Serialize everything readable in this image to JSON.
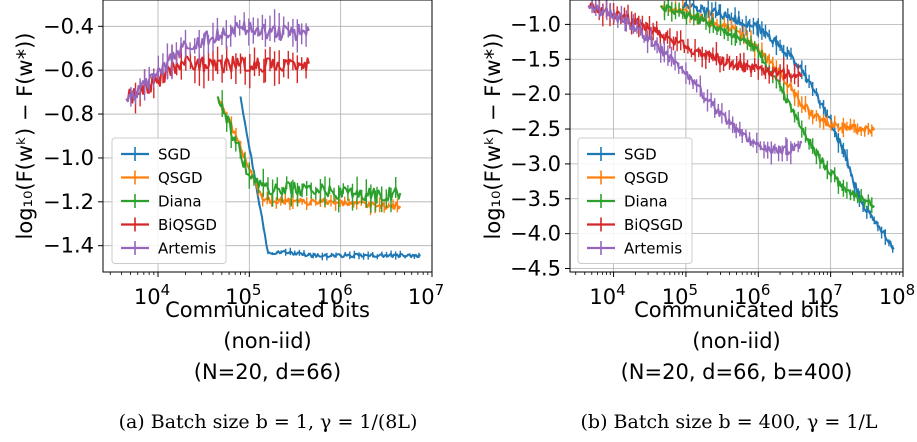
{
  "chart_data": [
    {
      "type": "line",
      "ylabel": "log₁₀(F(wᵏ) − F(w*))",
      "xlabel_lines": [
        "Communicated bits",
        "(non-iid)",
        "(N=20, d=66)"
      ],
      "caption": "(a) Batch size b = 1, γ = 1/(8L)",
      "x_scale": "log",
      "xlim": [
        2500,
        10000000
      ],
      "ylim": [
        -1.52,
        -0.28
      ],
      "x_ticks": [
        {
          "value": 10000,
          "base": "10",
          "exp": "4"
        },
        {
          "value": 100000,
          "base": "10",
          "exp": "5"
        },
        {
          "value": 1000000,
          "base": "10",
          "exp": "6"
        },
        {
          "value": 10000000,
          "base": "10",
          "exp": "7"
        }
      ],
      "y_ticks": [
        {
          "value": -0.4,
          "label": "−0.4"
        },
        {
          "value": -0.6,
          "label": "−0.6"
        },
        {
          "value": -0.8,
          "label": "−0.8"
        },
        {
          "value": -1.0,
          "label": "−1.0"
        },
        {
          "value": -1.2,
          "label": "−1.2"
        },
        {
          "value": -1.4,
          "label": "−1.4"
        }
      ],
      "grid": true,
      "legend_position": "lower-left",
      "series": [
        {
          "name": "SGD",
          "color": "#1f77b4",
          "noise": 0.008,
          "points": [
            [
              80000,
              -0.72
            ],
            [
              160000,
              -1.43
            ],
            [
              250000,
              -1.43
            ],
            [
              500000,
              -1.445
            ],
            [
              1000000,
              -1.445
            ],
            [
              2000000,
              -1.445
            ],
            [
              4000000,
              -1.445
            ],
            [
              7500000,
              -1.445
            ]
          ]
        },
        {
          "name": "QSGD",
          "color": "#ff7f0e",
          "noise": 0.015,
          "points": [
            [
              45000,
              -0.72
            ],
            [
              90000,
              -1.0
            ],
            [
              140000,
              -1.19
            ],
            [
              300000,
              -1.2
            ],
            [
              700000,
              -1.2
            ],
            [
              1500000,
              -1.21
            ],
            [
              3000000,
              -1.22
            ],
            [
              4500000,
              -1.22
            ]
          ]
        },
        {
          "name": "Diana",
          "color": "#2ca02c",
          "noise": 0.03,
          "points": [
            [
              45000,
              -0.72
            ],
            [
              100000,
              -1.08
            ],
            [
              160000,
              -1.14
            ],
            [
              300000,
              -1.14
            ],
            [
              600000,
              -1.15
            ],
            [
              1200000,
              -1.16
            ],
            [
              2500000,
              -1.17
            ],
            [
              4500000,
              -1.16
            ]
          ]
        },
        {
          "name": "BiQSGD",
          "color": "#d62728",
          "noise": 0.035,
          "points": [
            [
              4500,
              -0.73
            ],
            [
              9000,
              -0.66
            ],
            [
              18000,
              -0.56
            ],
            [
              40000,
              -0.58
            ],
            [
              80000,
              -0.57
            ],
            [
              150000,
              -0.58
            ],
            [
              300000,
              -0.56
            ],
            [
              450000,
              -0.57
            ]
          ]
        },
        {
          "name": "Artemis",
          "color": "#9467bd",
          "noise": 0.035,
          "points": [
            [
              4500,
              -0.73
            ],
            [
              9000,
              -0.64
            ],
            [
              20000,
              -0.48
            ],
            [
              40000,
              -0.45
            ],
            [
              70000,
              -0.4
            ],
            [
              150000,
              -0.43
            ],
            [
              300000,
              -0.43
            ],
            [
              450000,
              -0.42
            ]
          ]
        }
      ]
    },
    {
      "type": "line",
      "ylabel": "log₁₀(F(wᵏ) − F(w*))",
      "xlabel_lines": [
        "Communicated bits",
        "(non-iid)",
        "(N=20, d=66, b=400)"
      ],
      "caption": "(b) Batch size b = 400, γ = 1/L",
      "x_scale": "log",
      "xlim": [
        2500,
        100000000
      ],
      "ylim": [
        -4.55,
        -0.65
      ],
      "x_ticks": [
        {
          "value": 10000,
          "base": "10",
          "exp": "4"
        },
        {
          "value": 100000,
          "base": "10",
          "exp": "5"
        },
        {
          "value": 1000000,
          "base": "10",
          "exp": "6"
        },
        {
          "value": 10000000,
          "base": "10",
          "exp": "7"
        },
        {
          "value": 100000000,
          "base": "10",
          "exp": "8"
        }
      ],
      "y_ticks": [
        {
          "value": -1.0,
          "label": "−1.0"
        },
        {
          "value": -1.5,
          "label": "−1.5"
        },
        {
          "value": -2.0,
          "label": "−2.0"
        },
        {
          "value": -2.5,
          "label": "−2.5"
        },
        {
          "value": -3.0,
          "label": "−3.0"
        },
        {
          "value": -3.5,
          "label": "−3.5"
        },
        {
          "value": -4.0,
          "label": "−4.0"
        },
        {
          "value": -4.5,
          "label": "−4.5"
        }
      ],
      "grid": true,
      "legend_position": "lower-left",
      "series": [
        {
          "name": "SGD",
          "color": "#1f77b4",
          "noise": 0.06,
          "points": [
            [
              90000,
              -0.73
            ],
            [
              300000,
              -0.85
            ],
            [
              1000000,
              -1.05
            ],
            [
              2000000,
              -1.3
            ],
            [
              4000000,
              -1.65
            ],
            [
              8000000,
              -2.2
            ],
            [
              15000000,
              -2.8
            ],
            [
              25000000,
              -3.5
            ],
            [
              45000000,
              -3.9
            ],
            [
              75000000,
              -4.2
            ]
          ]
        },
        {
          "name": "QSGD",
          "color": "#ff7f0e",
          "noise": 0.06,
          "points": [
            [
              45000,
              -0.73
            ],
            [
              150000,
              -0.9
            ],
            [
              500000,
              -1.1
            ],
            [
              1000000,
              -1.35
            ],
            [
              2000000,
              -1.7
            ],
            [
              4000000,
              -2.15
            ],
            [
              8000000,
              -2.4
            ],
            [
              15000000,
              -2.48
            ],
            [
              40000000,
              -2.52
            ]
          ]
        },
        {
          "name": "Diana",
          "color": "#2ca02c",
          "noise": 0.06,
          "points": [
            [
              45000,
              -0.73
            ],
            [
              150000,
              -0.92
            ],
            [
              500000,
              -1.15
            ],
            [
              1000000,
              -1.4
            ],
            [
              2000000,
              -1.9
            ],
            [
              4000000,
              -2.5
            ],
            [
              8000000,
              -3.0
            ],
            [
              15000000,
              -3.35
            ],
            [
              40000000,
              -3.6
            ]
          ]
        },
        {
          "name": "BiQSGD",
          "color": "#d62728",
          "noise": 0.07,
          "points": [
            [
              4500,
              -0.73
            ],
            [
              10000,
              -0.85
            ],
            [
              25000,
              -1.0
            ],
            [
              60000,
              -1.2
            ],
            [
              150000,
              -1.4
            ],
            [
              400000,
              -1.55
            ],
            [
              1000000,
              -1.65
            ],
            [
              2000000,
              -1.7
            ],
            [
              4000000,
              -1.72
            ]
          ]
        },
        {
          "name": "Artemis",
          "color": "#9467bd",
          "noise": 0.07,
          "points": [
            [
              4500,
              -0.73
            ],
            [
              15000,
              -0.95
            ],
            [
              40000,
              -1.3
            ],
            [
              100000,
              -1.7
            ],
            [
              250000,
              -2.2
            ],
            [
              600000,
              -2.6
            ],
            [
              1200000,
              -2.8
            ],
            [
              2500000,
              -2.8
            ],
            [
              4000000,
              -2.7
            ]
          ]
        }
      ]
    }
  ]
}
